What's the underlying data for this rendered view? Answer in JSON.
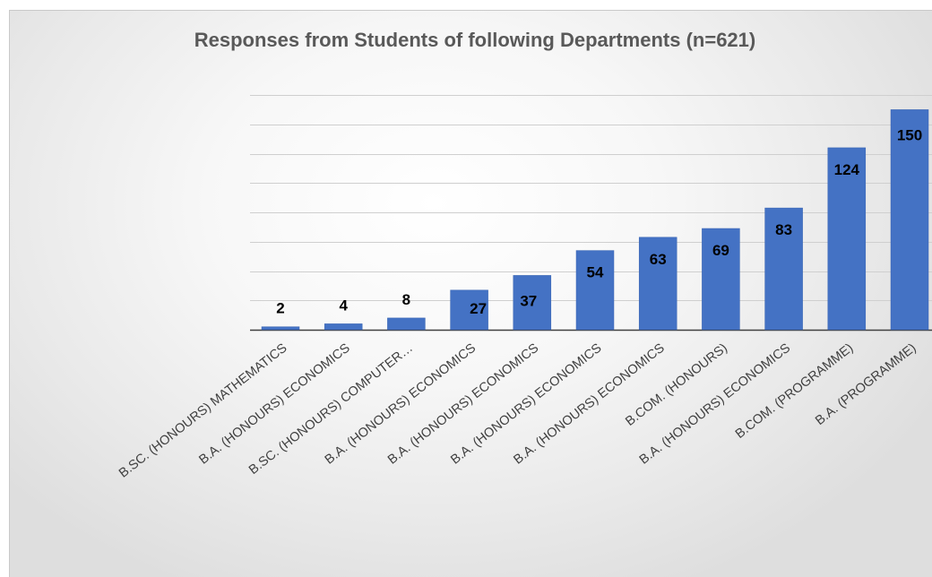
{
  "chart_data": {
    "type": "bar",
    "title": "Responses from Students of following Departments (n=621)",
    "xlabel": "",
    "ylabel": "",
    "ylim": [
      0,
      160
    ],
    "grid": true,
    "legend": "none",
    "bar_color": "#4472c4",
    "categories": [
      "B.SC. (HONOURS) MATHEMATICS",
      "B.A. (HONOURS) ECONOMICS",
      "B.SC. (HONOURS) COMPUTER…",
      "B.A. (HONOURS) ECONOMICS",
      "B.A. (HONOURS) ECONOMICS",
      "B.A. (HONOURS) ECONOMICS",
      "B.A. (HONOURS) ECONOMICS",
      "B.COM. (HONOURS)",
      "B.A. (HONOURS) ECONOMICS",
      "B.COM. (PROGRAMME)",
      "B.A. (PROGRAMME)"
    ],
    "values": [
      2,
      4,
      8,
      27,
      37,
      54,
      63,
      69,
      83,
      124,
      150
    ]
  }
}
